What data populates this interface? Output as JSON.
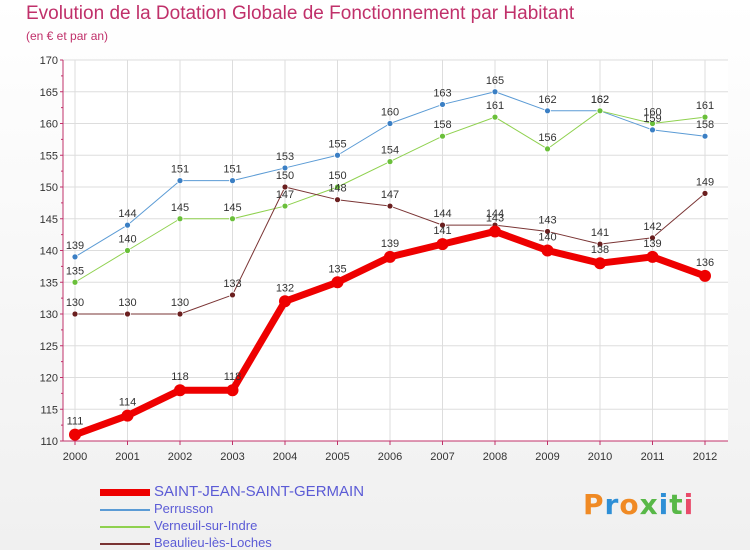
{
  "header": {
    "title": "Evolution de la Dotation Globale de Fonctionnement par Habitant",
    "subtitle": "(en € et par an)"
  },
  "logo": {
    "text": "Proxiti",
    "colors": [
      "#f08a24",
      "#2e8fd6",
      "#f08a24",
      "#58b848",
      "#2e8fd6",
      "#58b848",
      "#e94b6a"
    ]
  },
  "chart_data": {
    "type": "line",
    "title": "Evolution de la Dotation Globale de Fonctionnement par Habitant",
    "subtitle": "(en € et par an)",
    "xlabel": "",
    "ylabel": "",
    "x": [
      "2000",
      "2001",
      "2002",
      "2003",
      "2004",
      "2005",
      "2006",
      "2007",
      "2008",
      "2009",
      "2010",
      "2011",
      "2012"
    ],
    "ylim": [
      110,
      170
    ],
    "yticks": [
      110,
      115,
      120,
      125,
      130,
      135,
      140,
      145,
      150,
      155,
      160,
      165,
      170
    ],
    "grid": true,
    "legend_position": "bottom-left",
    "series": [
      {
        "name": "SAINT-JEAN-SAINT-GERMAIN",
        "color": "#ee0000",
        "width": 7,
        "values": [
          111,
          114,
          118,
          118,
          132,
          135,
          139,
          141,
          143,
          140,
          138,
          139,
          136
        ]
      },
      {
        "name": "Perrusson",
        "color": "#5b9bd5",
        "width": 1,
        "values": [
          139,
          144,
          151,
          151,
          153,
          155,
          160,
          163,
          165,
          162,
          162,
          159,
          158
        ]
      },
      {
        "name": "Verneuil-sur-Indre",
        "color": "#8fd14f",
        "width": 1,
        "values": [
          135,
          140,
          145,
          145,
          147,
          150,
          154,
          158,
          161,
          156,
          162,
          160,
          161
        ]
      },
      {
        "name": "Beaulieu-lès-Loches",
        "color": "#7a3434",
        "width": 1,
        "values": [
          130,
          130,
          130,
          133,
          150,
          148,
          147,
          144,
          144,
          143,
          141,
          142,
          149
        ]
      }
    ]
  },
  "legend": {
    "items": [
      {
        "label": "SAINT-JEAN-SAINT-GERMAIN",
        "color": "#ee0000",
        "text_color": "#5b5bd6"
      },
      {
        "label": "Perrusson",
        "color": "#5b9bd5",
        "text_color": "#5b5bd6"
      },
      {
        "label": "Verneuil-sur-Indre",
        "color": "#8fd14f",
        "text_color": "#5b5bd6"
      },
      {
        "label": "Beaulieu-lès-Loches",
        "color": "#7a3434",
        "text_color": "#5b5bd6"
      }
    ]
  }
}
